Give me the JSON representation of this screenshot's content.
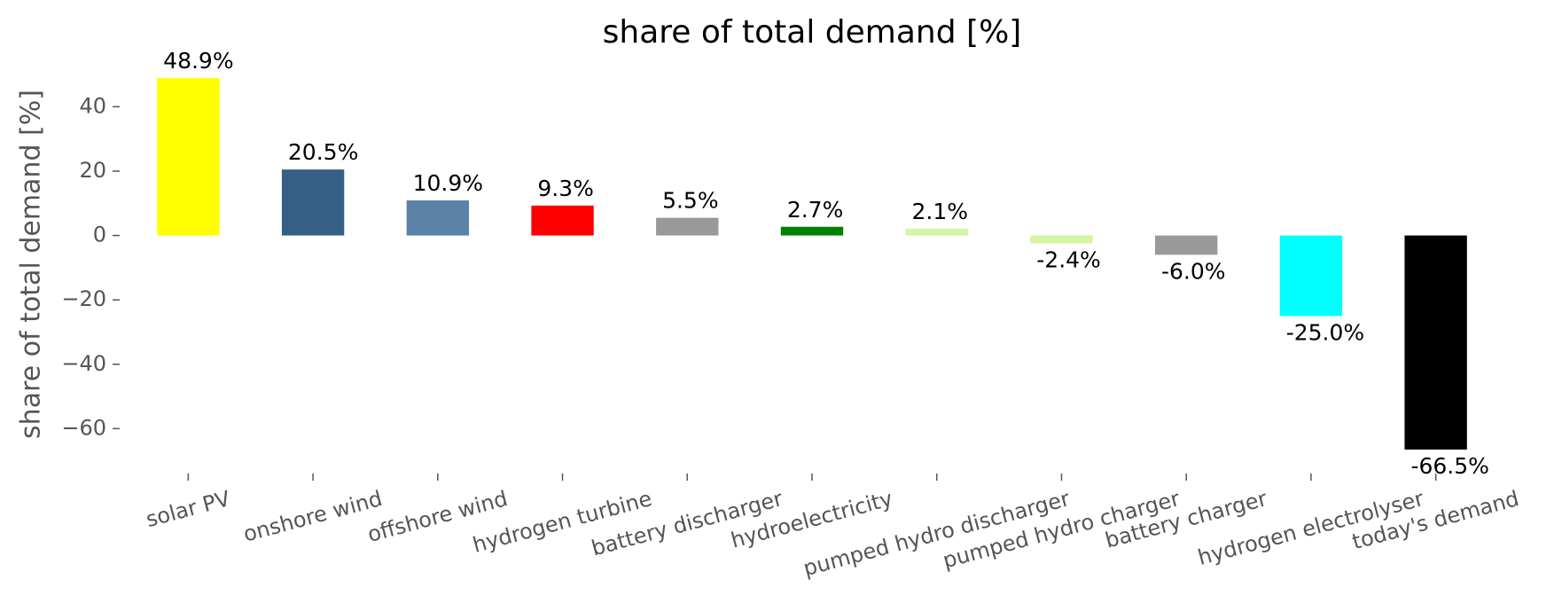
{
  "chart_data": {
    "type": "bar",
    "title": "share of total demand [%]",
    "ylabel": "share of total demand [%]",
    "categories": [
      "solar PV",
      "onshore wind",
      "offshore wind",
      "hydrogen turbine",
      "battery discharger",
      "hydroelectricity",
      "pumped hydro discharger",
      "pumped hydro charger",
      "battery charger",
      "hydrogen electrolyser",
      "today's demand"
    ],
    "values": [
      48.9,
      20.5,
      10.9,
      9.3,
      5.5,
      2.7,
      2.1,
      -2.4,
      -6.0,
      -25.0,
      -66.5
    ],
    "value_labels": [
      "48.9%",
      "20.5%",
      "10.9%",
      "9.3%",
      "5.5%",
      "2.7%",
      "2.1%",
      "-2.4%",
      "-6.0%",
      "-25.0%",
      "-66.5%"
    ],
    "colors": [
      "#ffff00",
      "#355f87",
      "#5b82a7",
      "#ff0000",
      "#999999",
      "#008000",
      "#d4f5a3",
      "#d4f5a3",
      "#999999",
      "#00ffff",
      "#000000"
    ],
    "ylim": [
      -72.3,
      54.7
    ],
    "yticks": [
      {
        "value": -60,
        "label": "−60"
      },
      {
        "value": -40,
        "label": "−40"
      },
      {
        "value": -20,
        "label": "−20"
      },
      0,
      20,
      40
    ],
    "grid": false
  }
}
